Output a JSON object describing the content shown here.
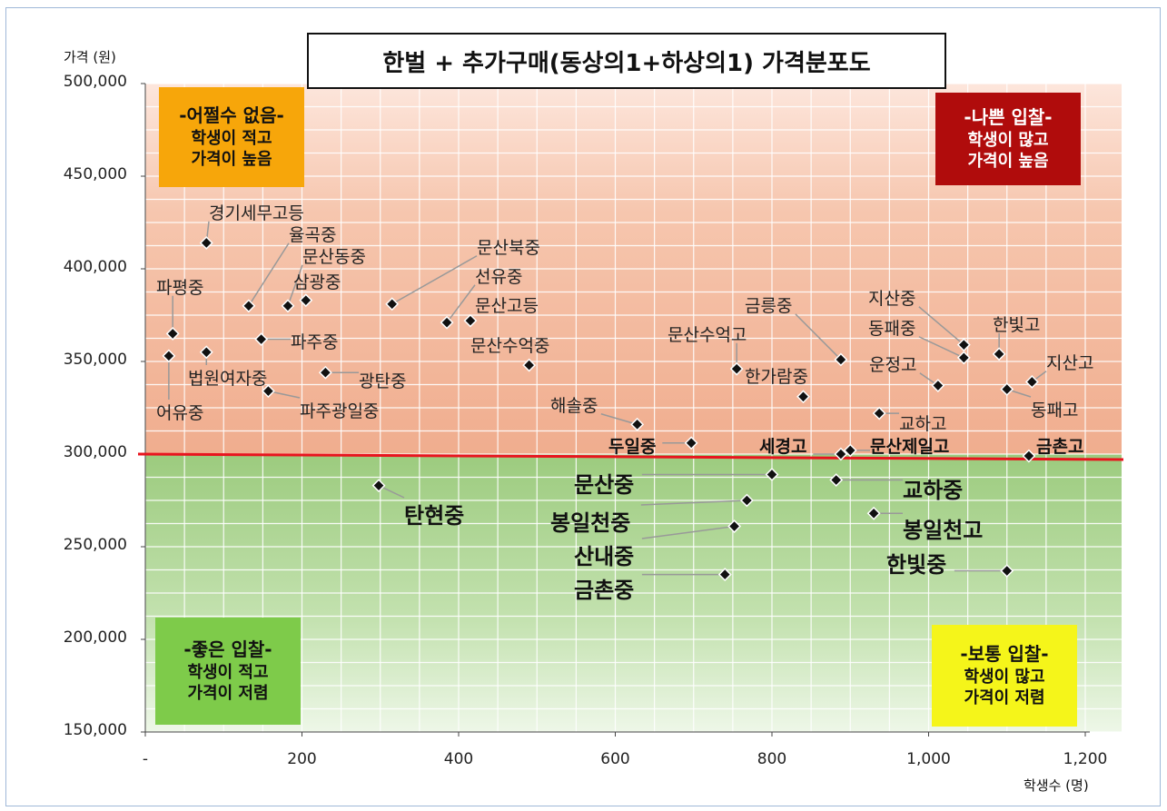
{
  "title": "한벌 + 추가구매(동상의1+하상의1) 가격분포도",
  "ylabel": "가격 (원)",
  "xlabel": "학생수 (명)",
  "yticks": [
    "500,000",
    "450,000",
    "400,000",
    "350,000",
    "300,000",
    "250,000",
    "200,000",
    "150,000"
  ],
  "xticks": [
    "-",
    "200",
    "400",
    "600",
    "800",
    "1,000",
    "1,200"
  ],
  "quadrants": {
    "top_left": {
      "line1": "-어쩔수 없음-",
      "line2": "학생이 적고",
      "line3": "가격이 높음",
      "bg": "#f7a60a",
      "color": "#111111"
    },
    "top_right": {
      "line1": "-나쁜 입찰-",
      "line2": "학생이 많고",
      "line3": "가격이 높음",
      "bg": "#b00c0c",
      "color": "#ffffff"
    },
    "bottom_left": {
      "line1": "-좋은 입찰-",
      "line2": "학생이 적고",
      "line3": "가격이 저렴",
      "bg": "#7ecb4a",
      "color": "#111111"
    },
    "bottom_right": {
      "line1": "-보통 입찰-",
      "line2": "학생이 많고",
      "line3": "가격이 저렴",
      "bg": "#f5f51a",
      "color": "#111111"
    }
  },
  "colors": {
    "upper_band": "#f3b99d",
    "lower_band": "#a8d08d",
    "threshold_line": "#e8141e",
    "marker": "#111111"
  },
  "chart_data": {
    "type": "scatter",
    "title": "한벌 + 추가구매(동상의1+하상의1) 가격분포도",
    "xlabel": "학생수 (명)",
    "ylabel": "가격 (원)",
    "xlim": [
      0,
      1200
    ],
    "ylim": [
      150000,
      500000
    ],
    "grid": true,
    "threshold_y": 300000,
    "points": [
      {
        "name": "경기세무고등",
        "x": 78,
        "y": 414000
      },
      {
        "name": "율곡중",
        "x": 132,
        "y": 380000
      },
      {
        "name": "문산동중",
        "x": 182,
        "y": 380000
      },
      {
        "name": "삼광중",
        "x": 205,
        "y": 383000
      },
      {
        "name": "파평중",
        "x": 35,
        "y": 365000
      },
      {
        "name": "파주중",
        "x": 148,
        "y": 362000
      },
      {
        "name": "법원여자중",
        "x": 78,
        "y": 355000
      },
      {
        "name": "어유중",
        "x": 30,
        "y": 353000
      },
      {
        "name": "광탄중",
        "x": 230,
        "y": 344000
      },
      {
        "name": "파주광일중",
        "x": 157,
        "y": 334000
      },
      {
        "name": "문산북중",
        "x": 315,
        "y": 381000
      },
      {
        "name": "선유중",
        "x": 385,
        "y": 371000
      },
      {
        "name": "문산고등",
        "x": 415,
        "y": 372000
      },
      {
        "name": "문산수억중",
        "x": 490,
        "y": 348000
      },
      {
        "name": "해솔중",
        "x": 628,
        "y": 316000
      },
      {
        "name": "두일중",
        "x": 697,
        "y": 306000
      },
      {
        "name": "문산수억고",
        "x": 755,
        "y": 346000
      },
      {
        "name": "한가람중",
        "x": 840,
        "y": 331000
      },
      {
        "name": "금릉중",
        "x": 888,
        "y": 351000
      },
      {
        "name": "세경고",
        "x": 888,
        "y": 300000
      },
      {
        "name": "문산제일고",
        "x": 900,
        "y": 302000
      },
      {
        "name": "교하고",
        "x": 937,
        "y": 322000
      },
      {
        "name": "운정고",
        "x": 1012,
        "y": 337000
      },
      {
        "name": "지산중",
        "x": 1045,
        "y": 359000
      },
      {
        "name": "동패중",
        "x": 1045,
        "y": 352000
      },
      {
        "name": "한빛고",
        "x": 1090,
        "y": 354000
      },
      {
        "name": "동패고",
        "x": 1100,
        "y": 335000
      },
      {
        "name": "지산고",
        "x": 1132,
        "y": 339000
      },
      {
        "name": "금촌고",
        "x": 1128,
        "y": 299000
      },
      {
        "name": "탄현중",
        "x": 298,
        "y": 283000
      },
      {
        "name": "문산중",
        "x": 800,
        "y": 289000
      },
      {
        "name": "교하중",
        "x": 882,
        "y": 286000
      },
      {
        "name": "봉일천중",
        "x": 768,
        "y": 275000
      },
      {
        "name": "봉일천고",
        "x": 930,
        "y": 268000
      },
      {
        "name": "산내중",
        "x": 752,
        "y": 261000
      },
      {
        "name": "금촌중",
        "x": 740,
        "y": 235000
      },
      {
        "name": "한빛중",
        "x": 1100,
        "y": 237000
      }
    ]
  }
}
